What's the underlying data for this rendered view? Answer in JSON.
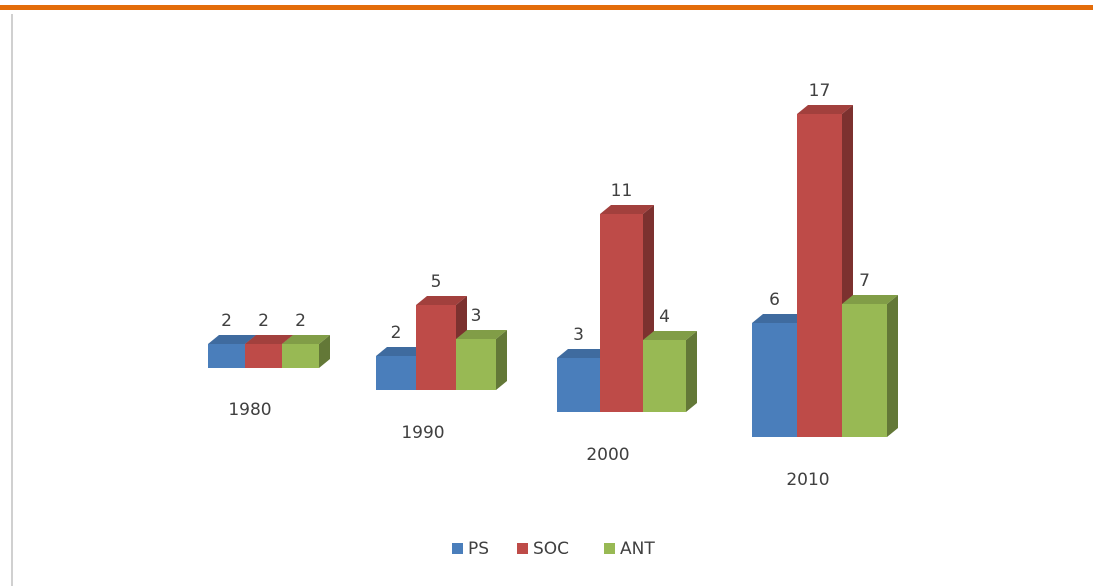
{
  "chart_data": {
    "type": "bar",
    "categories": [
      "1980",
      "1990",
      "2000",
      "2010"
    ],
    "series": [
      {
        "name": "PS",
        "color": "#4a7ebb",
        "values": [
          2,
          2,
          3,
          6
        ]
      },
      {
        "name": "SOC",
        "color": "#be4b48",
        "values": [
          2,
          5,
          11,
          17
        ]
      },
      {
        "name": "ANT",
        "color": "#98b954",
        "values": [
          2,
          3,
          4,
          7
        ]
      }
    ],
    "legend": "bottom"
  }
}
